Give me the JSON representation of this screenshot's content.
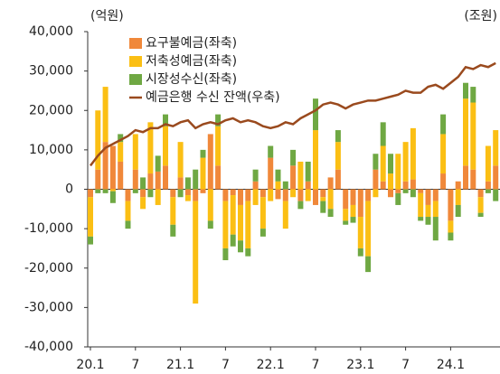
{
  "chart_data": {
    "type": "bar",
    "stacked": true,
    "y_unit": "(억원)",
    "y2_unit": "(조원)",
    "categories": [
      "20.1",
      null,
      null,
      null,
      null,
      null,
      "7",
      null,
      null,
      null,
      null,
      null,
      "21.1",
      null,
      null,
      null,
      null,
      null,
      "7",
      null,
      null,
      null,
      null,
      null,
      "22.1",
      null,
      null,
      null,
      null,
      null,
      "7",
      null,
      null,
      null,
      null,
      null,
      "23.1",
      null,
      null,
      null,
      null,
      null,
      "7",
      null,
      null,
      null,
      null,
      null,
      "24.1",
      null,
      null,
      null,
      null,
      null,
      null
    ],
    "ylim": [
      -40000,
      40000
    ],
    "yticks": [
      {
        "value": 40000,
        "label": "40,000"
      },
      {
        "value": 30000,
        "label": "30,000"
      },
      {
        "value": 20000,
        "label": "20,000"
      },
      {
        "value": 10000,
        "label": "10,000"
      },
      0,
      {
        "value": -10000,
        "label": "-10,000"
      },
      {
        "value": -20000,
        "label": "-20,000"
      },
      {
        "value": -30000,
        "label": "-30,000"
      },
      {
        "value": -40000,
        "label": "-40,000"
      }
    ],
    "series": [
      {
        "name": "요구불예금(좌축)",
        "type": "bar",
        "color": "#f0883a",
        "values": [
          -2000,
          5000,
          12000,
          11000,
          7000,
          -3000,
          5000,
          -2000,
          4000,
          4500,
          6000,
          -2000,
          3000,
          -1500,
          -3000,
          -1000,
          14000,
          6000,
          -3000,
          -1500,
          -4000,
          -3000,
          2000,
          -2000,
          8000,
          -2500,
          -3000,
          6000,
          -3000,
          2000,
          -4000,
          -2000,
          3000,
          5000,
          -5000,
          -4000,
          -7000,
          -3000,
          5000,
          2000,
          -2000,
          -1000,
          2000,
          2500,
          -1000,
          -4000,
          -3000,
          4000,
          -8000,
          2000,
          6000,
          5000,
          -2000,
          2000,
          6000
        ]
      },
      {
        "name": "저축성예금(좌축)",
        "type": "bar",
        "color": "#fbbf14",
        "values": [
          -10000,
          15000,
          14000,
          -500,
          5000,
          -5000,
          9000,
          -3000,
          13000,
          -4000,
          10000,
          -7000,
          9000,
          -1500,
          -26000,
          8000,
          -8000,
          10000,
          -12000,
          -10000,
          -9000,
          -12000,
          -4000,
          -8000,
          -3000,
          2000,
          -7000,
          -2000,
          7000,
          -3000,
          15000,
          -1000,
          -5000,
          7000,
          -3000,
          -3000,
          -8000,
          -14000,
          -2000,
          9000,
          4000,
          9000,
          10000,
          13000,
          -6000,
          -3000,
          -4000,
          10000,
          -3000,
          -4000,
          17000,
          17000,
          -4000,
          9000,
          9000
        ]
      },
      {
        "name": "시장성수신(좌축)",
        "type": "bar",
        "color": "#6fa843",
        "values": [
          -2000,
          -1000,
          -1000,
          -3000,
          2000,
          -2000,
          -1000,
          3000,
          -2000,
          4000,
          3000,
          -3000,
          -2000,
          3000,
          5000,
          2000,
          -2000,
          3000,
          -3000,
          -3000,
          -3000,
          -2000,
          3000,
          -2000,
          3000,
          3000,
          2000,
          4000,
          -2000,
          5000,
          8000,
          -3000,
          -2000,
          3000,
          -1000,
          -1500,
          -2000,
          -4000,
          4000,
          6000,
          5000,
          -3000,
          -1000,
          -2000,
          -1000,
          -2000,
          -6000,
          5000,
          -2000,
          -3000,
          4000,
          4000,
          -1000,
          -1000,
          -3000
        ]
      },
      {
        "name": "예금은행 수신 잔액(우축)",
        "type": "line",
        "color": "#9a4a1e",
        "values": [
          6000,
          8500,
          10500,
          11500,
          12500,
          13500,
          15000,
          14500,
          15500,
          15500,
          16500,
          16000,
          17000,
          17500,
          15500,
          16500,
          17000,
          16500,
          17500,
          18000,
          17000,
          17500,
          17000,
          16000,
          15500,
          16000,
          17000,
          16500,
          18000,
          19000,
          20000,
          21500,
          22000,
          21500,
          20500,
          21500,
          22000,
          22500,
          22500,
          23000,
          23500,
          24000,
          25000,
          24500,
          24500,
          26000,
          26500,
          25500,
          27000,
          28500,
          31000,
          30500,
          31500,
          31000,
          32000
        ]
      }
    ]
  }
}
